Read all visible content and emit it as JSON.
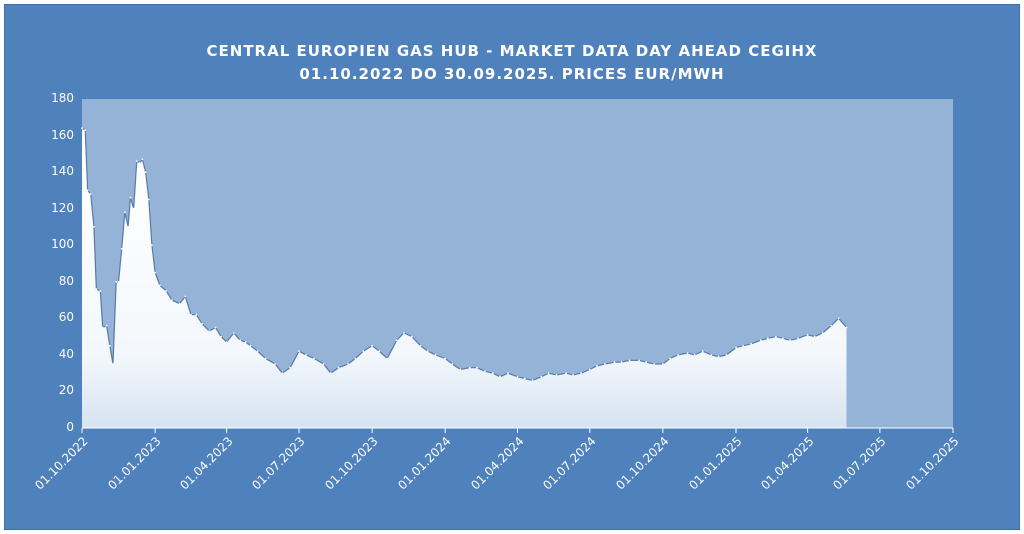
{
  "chart_data": {
    "type": "area",
    "title": "CENTRAL EUROPIEN GAS HUB - MARKET DATA DAY AHEAD CEGIHX",
    "subtitle": "01.10.2022 DO 30.09.2025. PRICES EUR/MWH",
    "xlabel": "",
    "ylabel": "",
    "ylim": [
      0,
      180
    ],
    "yticks": [
      "0",
      "20",
      "40",
      "60",
      "80",
      "100",
      "120",
      "140",
      "160",
      "180"
    ],
    "xticks": [
      "01.10.2022",
      "01.01.2023",
      "01.04.2023",
      "01.07.2023",
      "01.10.2023",
      "01.01.2024",
      "01.04.2024",
      "01.07.2024",
      "01.10.2024",
      "01.01.2025",
      "01.04.2025",
      "01.07.2025",
      "01.10.2025"
    ],
    "grid": false,
    "legend": "none",
    "colors": {
      "frame": "#4f81bd",
      "plot": "#95b3d7",
      "area": "#ffffff",
      "outline": "#355f8f"
    },
    "series": [
      {
        "x": [
          "01.10.2022",
          "05.10.2022",
          "08.10.2022",
          "12.10.2022",
          "16.10.2022",
          "19.10.2022",
          "24.10.2022",
          "27.10.2022",
          "01.11.2022",
          "05.11.2022",
          "09.11.2022",
          "13.11.2022",
          "16.11.2022",
          "20.11.2022",
          "24.11.2022",
          "28.11.2022",
          "01.12.2022",
          "05.12.2022",
          "09.12.2022",
          "13.12.2022",
          "16.12.2022",
          "20.12.2022",
          "24.12.2022",
          "28.12.2022",
          "01.01.2023",
          "07.01.2023",
          "15.01.2023",
          "22.01.2023",
          "01.02.2023",
          "08.02.2023",
          "15.02.2023",
          "22.02.2023",
          "01.03.2023",
          "10.03.2023",
          "18.03.2023",
          "25.03.2023",
          "01.04.2023",
          "10.04.2023",
          "18.04.2023",
          "25.04.2023",
          "01.05.2023",
          "10.05.2023",
          "20.05.2023",
          "01.06.2023",
          "10.06.2023",
          "20.06.2023",
          "01.07.2023",
          "10.07.2023",
          "20.07.2023",
          "01.08.2023",
          "10.08.2023",
          "20.08.2023",
          "01.09.2023",
          "10.09.2023",
          "20.09.2023",
          "01.10.2023",
          "10.10.2023",
          "20.10.2023",
          "01.11.2023",
          "10.11.2023",
          "20.11.2023",
          "01.12.2023",
          "10.12.2023",
          "20.12.2023",
          "01.01.2024",
          "10.01.2024",
          "20.01.2024",
          "01.02.2024",
          "10.02.2024",
          "20.02.2024",
          "01.03.2024",
          "10.03.2024",
          "20.03.2024",
          "01.04.2024",
          "10.04.2024",
          "20.04.2024",
          "01.05.2024",
          "10.05.2024",
          "20.05.2024",
          "01.06.2024",
          "10.06.2024",
          "20.06.2024",
          "01.07.2024",
          "10.07.2024",
          "20.07.2024",
          "01.08.2024",
          "10.08.2024",
          "20.08.2024",
          "01.09.2024",
          "10.09.2024",
          "20.09.2024",
          "01.10.2024",
          "10.10.2024",
          "20.10.2024",
          "01.11.2024",
          "10.11.2024",
          "20.11.2024",
          "01.12.2024",
          "10.12.2024",
          "20.12.2024",
          "01.01.2025",
          "10.01.2025",
          "20.01.2025",
          "01.02.2025",
          "10.02.2025",
          "20.02.2025",
          "01.03.2025",
          "10.03.2025",
          "20.03.2025",
          "01.04.2025",
          "10.04.2025",
          "20.04.2025",
          "01.05.2025",
          "10.05.2025",
          "20.05.2025"
        ],
        "values": [
          164,
          163,
          130,
          128,
          110,
          76,
          75,
          55,
          56,
          45,
          35,
          80,
          80,
          98,
          118,
          110,
          126,
          120,
          146,
          145,
          147,
          140,
          125,
          100,
          85,
          78,
          75,
          70,
          68,
          72,
          62,
          62,
          57,
          53,
          55,
          50,
          47,
          52,
          48,
          47,
          45,
          42,
          38,
          35,
          30,
          33,
          42,
          40,
          38,
          35,
          30,
          33,
          35,
          38,
          42,
          45,
          42,
          38,
          48,
          52,
          50,
          45,
          42,
          40,
          38,
          35,
          32,
          33,
          33,
          31,
          30,
          28,
          30,
          28,
          27,
          26,
          28,
          30,
          29,
          30,
          29,
          30,
          32,
          34,
          35,
          36,
          36,
          37,
          37,
          36,
          35,
          35,
          38,
          40,
          41,
          40,
          42,
          40,
          39,
          40,
          44,
          45,
          46,
          48,
          49,
          50,
          49,
          48,
          49,
          51,
          50,
          52,
          56,
          60,
          55
        ]
      }
    ]
  }
}
